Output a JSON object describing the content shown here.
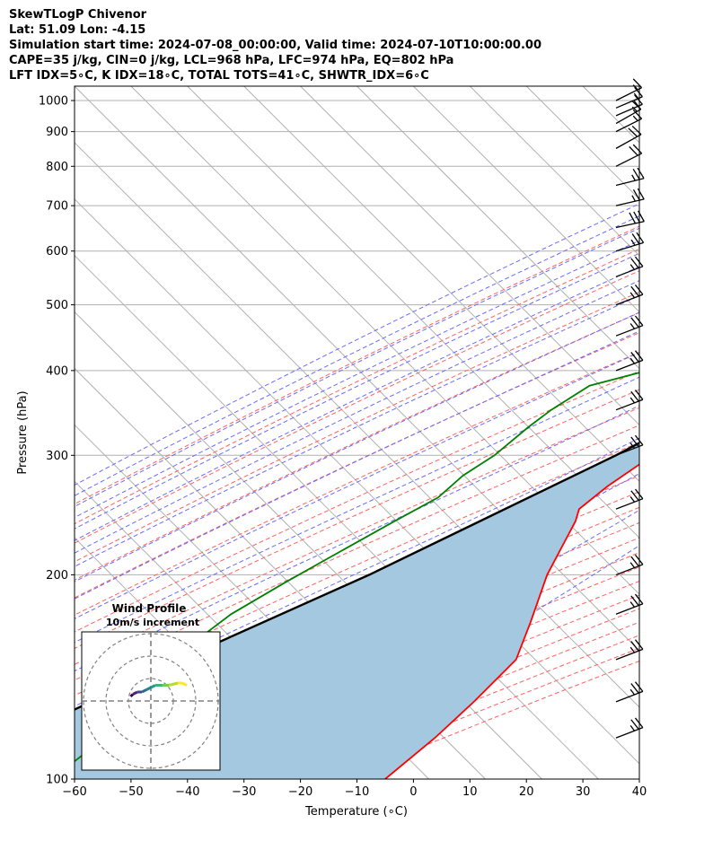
{
  "header": {
    "line1": "SkewTLogP Chivenor",
    "line2": "Lat: 51.09   Lon: -4.15",
    "line3": "Simulation start time: 2024-07-08_00:00:00, Valid time: 2024-07-10T10:00:00.00",
    "line4": "CAPE=35 j/kg, CIN=0 j/kg, LCL=968 hPa, LFC=974 hPa, EQ=802 hPa",
    "line5": "LFT IDX=5∘C, K IDX=18∘C, TOTAL TOTS=41∘C, SHWTR_IDX=6∘C"
  },
  "chart_data": {
    "type": "line",
    "xlabel": "Temperature (∘C)",
    "ylabel": "Pressure (hPa)",
    "xlim": [
      -60,
      40
    ],
    "ylim": [
      1050,
      100
    ],
    "y_scale": "log",
    "x_ticks": [
      -60,
      -50,
      -40,
      -30,
      -20,
      -10,
      0,
      10,
      20,
      30,
      40
    ],
    "y_ticks": [
      1000,
      900,
      800,
      700,
      600,
      500,
      400,
      300,
      200,
      100
    ],
    "grid": true,
    "series": [
      {
        "kind": "temperature",
        "color": "#ff0000",
        "points": [
          [
            16.5,
            1000
          ],
          [
            15.5,
            950
          ],
          [
            13.5,
            900
          ],
          [
            13,
            850
          ],
          [
            13.5,
            810
          ],
          [
            12.7,
            780
          ],
          [
            10.5,
            700
          ],
          [
            8.3,
            600
          ],
          [
            5,
            520
          ],
          [
            1,
            460
          ],
          [
            -5.2,
            400
          ],
          [
            -10.8,
            350
          ],
          [
            -15,
            300
          ],
          [
            -17.5,
            270
          ],
          [
            -18.5,
            250
          ],
          [
            -17,
            240
          ],
          [
            -12.5,
            200
          ],
          [
            -7,
            170
          ],
          [
            -3,
            150
          ],
          [
            -3,
            130
          ],
          [
            -3.5,
            115
          ],
          [
            -5,
            100
          ]
        ]
      },
      {
        "kind": "dewpoint",
        "color": "#008000",
        "points": [
          [
            15.5,
            1000
          ],
          [
            15.3,
            950
          ],
          [
            14,
            900
          ],
          [
            12.5,
            850
          ],
          [
            9,
            810
          ],
          [
            3.5,
            760
          ],
          [
            1,
            720
          ],
          [
            -2,
            680
          ],
          [
            -5,
            640
          ],
          [
            -9,
            600
          ],
          [
            -13,
            560
          ],
          [
            -17,
            520
          ],
          [
            -18.8,
            480
          ],
          [
            -20,
            450
          ],
          [
            -31,
            400
          ],
          [
            -38.5,
            380
          ],
          [
            -41,
            350
          ],
          [
            -42,
            330
          ],
          [
            -43,
            300
          ],
          [
            -45,
            280
          ],
          [
            -45.5,
            260
          ],
          [
            -49,
            240
          ],
          [
            -54.5,
            210
          ],
          [
            -57.5,
            195
          ],
          [
            -61.5,
            175
          ],
          [
            -63,
            160
          ],
          [
            -60,
            135
          ],
          [
            -62,
            115
          ],
          [
            -64,
            100
          ]
        ]
      },
      {
        "kind": "parcel",
        "color": "#000000",
        "points": [
          [
            17.5,
            1000
          ],
          [
            15.5,
            950
          ],
          [
            14.7,
            900
          ],
          [
            13.6,
            850
          ],
          [
            12.7,
            800
          ],
          [
            10.3,
            700
          ],
          [
            6.5,
            600
          ],
          [
            0.7,
            500
          ],
          [
            -8.2,
            400
          ],
          [
            -21.5,
            300
          ],
          [
            -44,
            200
          ],
          [
            -62.5,
            150
          ],
          [
            -86,
            100
          ]
        ]
      }
    ],
    "shading_color": "#a4c8e0",
    "hodograph": {
      "title": "Wind Profile",
      "subtitle": "10m/s increment",
      "rings": [
        10,
        20,
        30
      ],
      "points": [
        [
          -9,
          2
        ],
        [
          -8,
          3
        ],
        [
          -6,
          4
        ],
        [
          -4,
          4
        ],
        [
          -2,
          5
        ],
        [
          0,
          6
        ],
        [
          2,
          7
        ],
        [
          5,
          7
        ],
        [
          8,
          7
        ],
        [
          12,
          8
        ],
        [
          14,
          8
        ],
        [
          16,
          7
        ]
      ]
    },
    "wind_barbs": [
      {
        "p": 1000,
        "u": -6,
        "v": -3
      },
      {
        "p": 975,
        "u": -7,
        "v": -3
      },
      {
        "p": 950,
        "u": -7,
        "v": -3
      },
      {
        "p": 925,
        "u": -7,
        "v": -4
      },
      {
        "p": 900,
        "u": -8,
        "v": -4
      },
      {
        "p": 850,
        "u": -9,
        "v": -5
      },
      {
        "p": 800,
        "u": -10,
        "v": -5
      },
      {
        "p": 750,
        "u": -12,
        "v": -3
      },
      {
        "p": 700,
        "u": -13,
        "v": -3
      },
      {
        "p": 650,
        "u": -14,
        "v": -3
      },
      {
        "p": 600,
        "u": -13,
        "v": -4
      },
      {
        "p": 550,
        "u": -13,
        "v": -5
      },
      {
        "p": 500,
        "u": -13,
        "v": -5
      },
      {
        "p": 450,
        "u": -13,
        "v": -5
      },
      {
        "p": 400,
        "u": -13,
        "v": -5
      },
      {
        "p": 350,
        "u": -13,
        "v": -5
      },
      {
        "p": 300,
        "u": -13,
        "v": -5
      },
      {
        "p": 250,
        "u": -13,
        "v": -5
      },
      {
        "p": 200,
        "u": -13,
        "v": -5
      },
      {
        "p": 175,
        "u": -13,
        "v": -5
      },
      {
        "p": 150,
        "u": -13,
        "v": -5
      },
      {
        "p": 130,
        "u": -13,
        "v": -5
      },
      {
        "p": 115,
        "u": -13,
        "v": -5
      }
    ]
  }
}
